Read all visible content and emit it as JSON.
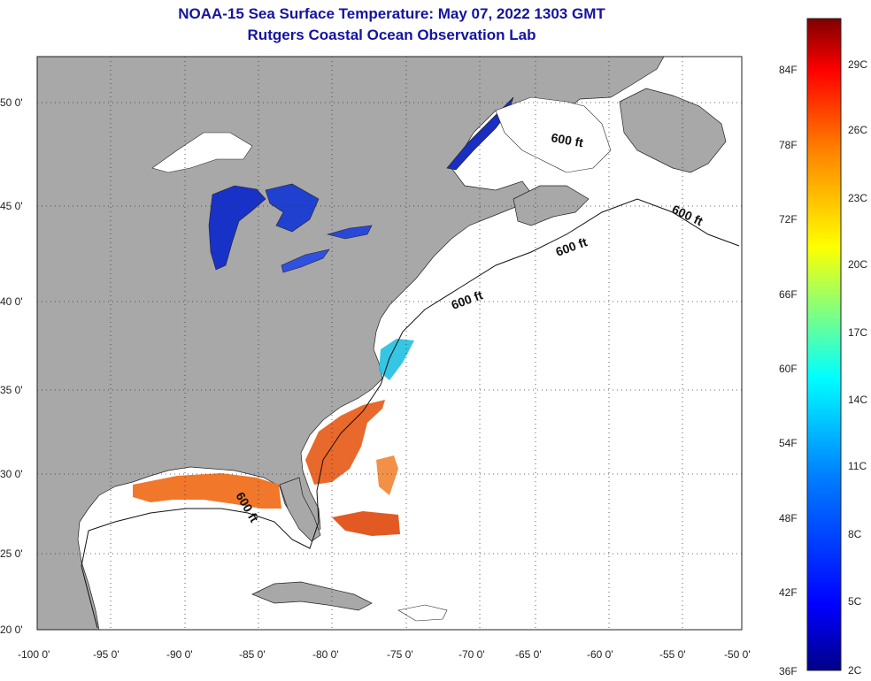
{
  "header": {
    "title": "NOAA-15 Sea Surface Temperature:  May 07, 2022 1303 GMT",
    "subtitle": "Rutgers Coastal Ocean Observation Lab"
  },
  "map": {
    "lat_labels": [
      "50 0'",
      "45 0'",
      "40 0'",
      "35 0'",
      "30 0'",
      "25 0'",
      "20 0'"
    ],
    "lon_labels": [
      "-100 0'",
      "-95 0'",
      "-90 0'",
      "-85 0'",
      "-80 0'",
      "-75 0'",
      "-70 0'",
      "-65 0'",
      "-60 0'",
      "-55 0'",
      "-50 0'"
    ],
    "contour_labels": [
      "600 ft",
      "600 ft",
      "600 ft",
      "600 ft",
      "600 ft"
    ],
    "land_color": "#a8a8a8",
    "ocean_color": "#ffffff"
  },
  "colorbar": {
    "fahrenheit_labels": [
      "84F",
      "78F",
      "72F",
      "66F",
      "60F",
      "54F",
      "48F",
      "42F",
      "36F"
    ],
    "celsius_labels": [
      "29C",
      "26C",
      "23C",
      "20C",
      "17C",
      "14C",
      "11C",
      "8C",
      "5C",
      "2C"
    ],
    "colors": [
      "#000088",
      "#0000ff",
      "#0080ff",
      "#00ffff",
      "#80ff80",
      "#ffff00",
      "#ff8000",
      "#ff0000",
      "#800000"
    ]
  }
}
